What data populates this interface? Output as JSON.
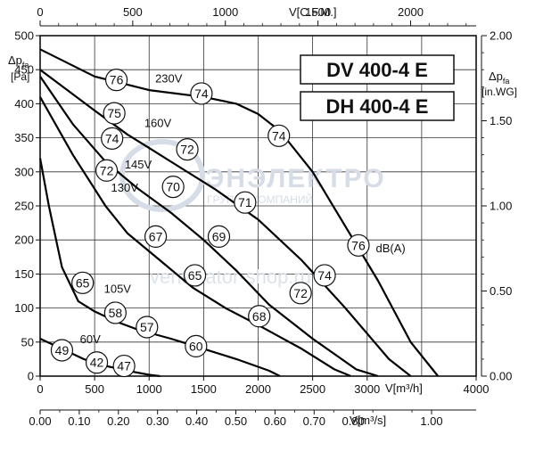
{
  "chart_data": {
    "type": "line",
    "axes": {
      "bottom_primary": {
        "unit_label": "V[m³/h]",
        "range": [
          0,
          4000
        ],
        "ticks": [
          0,
          500,
          1000,
          1500,
          2000,
          2500,
          3000,
          4000
        ]
      },
      "top": {
        "unit_label": "V[C.F.M.]",
        "range": [
          0,
          2354
        ],
        "ticks": [
          "0",
          "500",
          "1000",
          "1500",
          "2000"
        ]
      },
      "bottom_secondary": {
        "unit_label": "V[m³/s]",
        "ticks": [
          "0.00",
          "0.10",
          "0.20",
          "0.30",
          "0.40",
          "0.50",
          "0.60",
          "0.70",
          "0.80",
          "1.00"
        ]
      },
      "left": {
        "label_main": "Δp",
        "label_sub": "fa",
        "unit": "[Pa]",
        "range": [
          0,
          500
        ],
        "ticks": [
          0,
          50,
          100,
          150,
          200,
          250,
          300,
          350,
          400,
          450,
          500
        ]
      },
      "right": {
        "label_main": "Δp",
        "label_sub": "fa",
        "unit": "[in.WG]",
        "range": [
          0,
          2.0
        ],
        "ticks": [
          "0.00",
          "0.50",
          "1.00",
          "1.50",
          "2.00"
        ]
      }
    },
    "grid": true,
    "models": [
      "DV 400-4 E",
      "DH 400-4 E"
    ],
    "watermark": {
      "brand": "ЭНЭЛЕКТРО",
      "tagline": "ГРУППА КОМПАНИЙ",
      "site": "ventilyator-shop.ru"
    },
    "series": [
      {
        "name": "230V",
        "x": [
          0,
          500,
          1000,
          1500,
          1800,
          2000,
          2200,
          2500,
          2800,
          3100,
          3400,
          3650
        ],
        "y": [
          480,
          440,
          420,
          410,
          400,
          385,
          360,
          300,
          220,
          140,
          50,
          0
        ]
      },
      {
        "name": "160V",
        "x": [
          0,
          500,
          800,
          1000,
          1300,
          1600,
          2000,
          2400,
          2800,
          3200,
          3400
        ],
        "y": [
          450,
          390,
          355,
          335,
          305,
          275,
          230,
          170,
          100,
          25,
          0
        ]
      },
      {
        "name": "145V",
        "x": [
          0,
          300,
          600,
          900,
          1200,
          1500,
          1800,
          2100,
          2500,
          2900,
          3100
        ],
        "y": [
          440,
          370,
          315,
          275,
          240,
          200,
          155,
          105,
          55,
          10,
          0
        ]
      },
      {
        "name": "130V",
        "x": [
          0,
          300,
          600,
          800,
          1100,
          1400,
          1700,
          2000,
          2400,
          2700,
          2850
        ],
        "y": [
          410,
          325,
          250,
          210,
          170,
          130,
          100,
          75,
          40,
          10,
          0
        ]
      },
      {
        "name": "105V",
        "x": [
          0,
          80,
          200,
          350,
          500,
          700,
          900,
          1200,
          1500,
          1800,
          2100,
          2200
        ],
        "y": [
          320,
          250,
          160,
          110,
          95,
          80,
          68,
          55,
          40,
          25,
          8,
          0
        ]
      },
      {
        "name": "60V",
        "x": [
          0,
          200,
          400,
          600,
          800,
          1000,
          1100
        ],
        "y": [
          55,
          40,
          25,
          15,
          8,
          2,
          0
        ]
      }
    ],
    "annotations": {
      "voltages": [
        {
          "text": "230V",
          "x": 1180,
          "y": 437
        },
        {
          "text": "160V",
          "x": 1080,
          "y": 372
        },
        {
          "text": "145V",
          "x": 900,
          "y": 311
        },
        {
          "text": "130V",
          "x": 775,
          "y": 277
        },
        {
          "text": "105V",
          "x": 710,
          "y": 128
        },
        {
          "text": "60V",
          "x": 460,
          "y": 54
        }
      ],
      "noise_levels": [
        {
          "text": "76",
          "x": 700,
          "y": 435
        },
        {
          "text": "74",
          "x": 1480,
          "y": 415
        },
        {
          "text": "74",
          "x": 2190,
          "y": 353
        },
        {
          "text": "75",
          "x": 680,
          "y": 386
        },
        {
          "text": "72",
          "x": 1350,
          "y": 333
        },
        {
          "text": "71",
          "x": 1880,
          "y": 255
        },
        {
          "text": "76",
          "x": 2920,
          "y": 192
        },
        {
          "text": "74",
          "x": 2610,
          "y": 148
        },
        {
          "text": "72",
          "x": 2390,
          "y": 122
        },
        {
          "text": "74",
          "x": 660,
          "y": 349
        },
        {
          "text": "70",
          "x": 1220,
          "y": 278
        },
        {
          "text": "69",
          "x": 1640,
          "y": 205
        },
        {
          "text": "72",
          "x": 610,
          "y": 302
        },
        {
          "text": "67",
          "x": 1060,
          "y": 205
        },
        {
          "text": "65",
          "x": 1420,
          "y": 148
        },
        {
          "text": "68",
          "x": 2010,
          "y": 88
        },
        {
          "text": "65",
          "x": 390,
          "y": 137
        },
        {
          "text": "58",
          "x": 690,
          "y": 93
        },
        {
          "text": "57",
          "x": 980,
          "y": 72
        },
        {
          "text": "60",
          "x": 1430,
          "y": 44
        },
        {
          "text": "49",
          "x": 200,
          "y": 38
        },
        {
          "text": "42",
          "x": 520,
          "y": 20
        },
        {
          "text": "47",
          "x": 770,
          "y": 15
        }
      ],
      "db_label": {
        "text": "dB(A)",
        "x": 3080,
        "y": 188
      }
    }
  }
}
